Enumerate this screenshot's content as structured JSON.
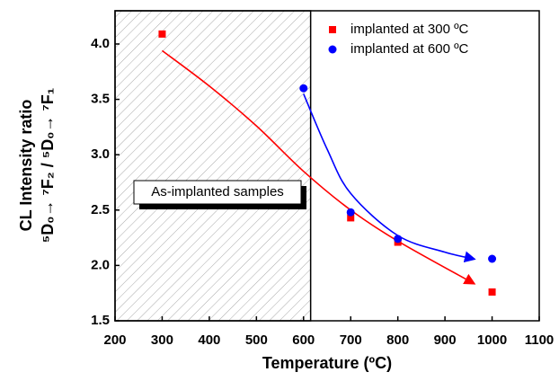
{
  "chart_data": {
    "type": "scatter",
    "x_label": "Temperature (ºC)",
    "y_label": [
      "CL Intensity ratio",
      "⁵D₀→ ⁷F₂ / ⁵D₀→ ⁷F₁"
    ],
    "xlim": [
      200,
      1100
    ],
    "xticks": [
      200,
      300,
      400,
      500,
      600,
      700,
      800,
      900,
      1000,
      1100
    ],
    "ylim": [
      1.5,
      4.3
    ],
    "yticks": [
      1.5,
      {
        "value": 2,
        "label": "2.0"
      },
      2.5,
      {
        "value": 3,
        "label": "3.0"
      },
      3.5,
      {
        "value": 4,
        "label": "4.0"
      }
    ],
    "legend": "upper right",
    "series": [
      {
        "name": "implanted at 300 ºC",
        "color": "#ff0000",
        "marker": "square",
        "x": [
          300,
          700,
          800,
          1000
        ],
        "values": [
          4.09,
          2.43,
          2.21,
          1.76
        ]
      },
      {
        "name": "implanted at 600 ºC",
        "color": "#0000ff",
        "marker": "circle",
        "x": [
          600,
          700,
          800,
          1000
        ],
        "values": [
          3.6,
          2.48,
          2.24,
          2.06
        ]
      }
    ],
    "fit_lines": [
      {
        "color": "#ff0000",
        "x": [
          300,
          400,
          500,
          600,
          700,
          800,
          960
        ],
        "values": [
          3.94,
          3.62,
          3.26,
          2.85,
          2.5,
          2.22,
          1.84
        ]
      },
      {
        "color": "#0000ff",
        "x": [
          600,
          650,
          700,
          800,
          900,
          960
        ],
        "values": [
          3.55,
          3.05,
          2.65,
          2.27,
          2.12,
          2.06
        ]
      }
    ],
    "shaded_region": {
      "xlim": [
        200,
        615
      ],
      "label": "As-implanted samples"
    }
  }
}
